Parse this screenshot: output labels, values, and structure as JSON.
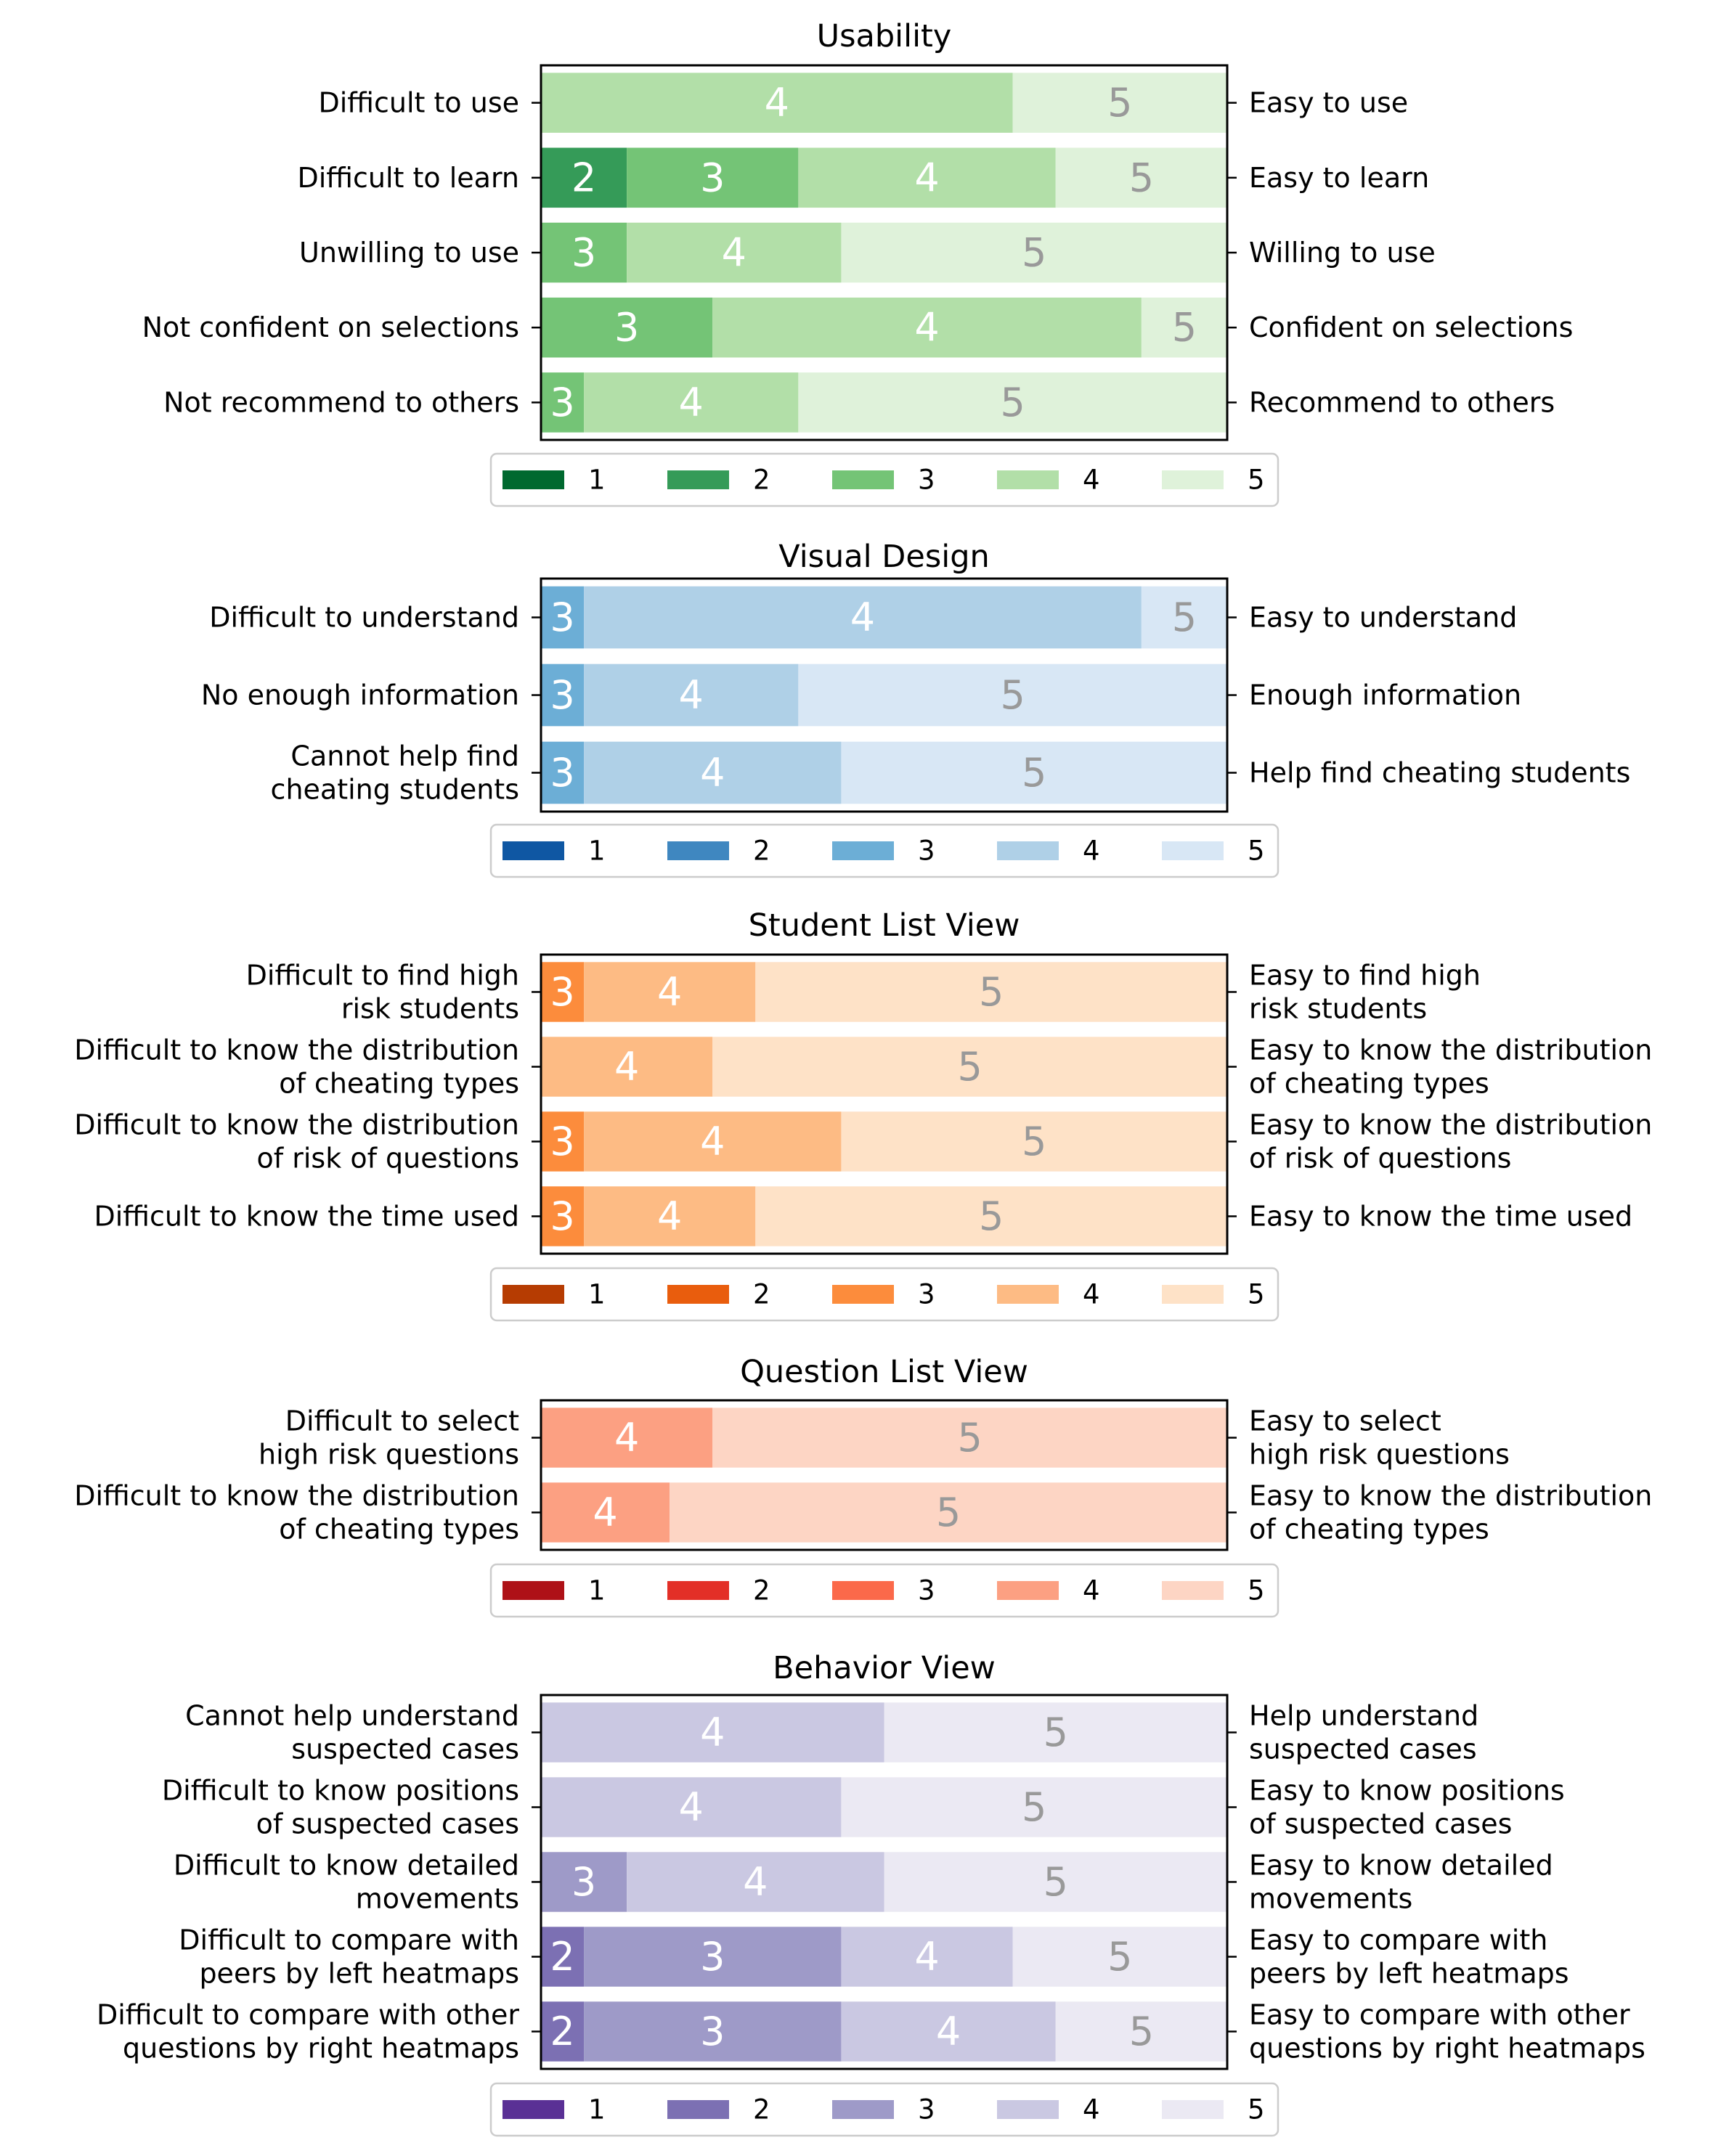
{
  "chart_data": [
    {
      "type": "bar",
      "orientation": "horizontal",
      "stacked": true,
      "title": "Usability",
      "xlim": [
        0,
        16
      ],
      "left_labels": [
        "Difficult to use",
        "Difficult to learn",
        "Unwilling to use",
        "Not confident on selections",
        "Not recommend to others"
      ],
      "right_labels": [
        "Easy to use",
        "Easy to learn",
        "Willing to use",
        "Confident on selections",
        "Recommend to others"
      ],
      "series": [
        {
          "name": "1",
          "values": [
            0,
            0,
            0,
            0,
            0
          ]
        },
        {
          "name": "2",
          "values": [
            0,
            2,
            0,
            0,
            0
          ]
        },
        {
          "name": "3",
          "values": [
            0,
            4,
            2,
            4,
            1
          ]
        },
        {
          "name": "4",
          "values": [
            11,
            6,
            5,
            10,
            5
          ]
        },
        {
          "name": "5",
          "values": [
            5,
            4,
            9,
            2,
            10
          ]
        }
      ],
      "colors": [
        "#00692f",
        "#359b58",
        "#74c476",
        "#b2dfa8",
        "#dff2da"
      ],
      "legend": {
        "position": "bottom",
        "entries": [
          "1",
          "2",
          "3",
          "4",
          "5"
        ]
      }
    },
    {
      "type": "bar",
      "orientation": "horizontal",
      "stacked": true,
      "title": "Visual Design",
      "xlim": [
        0,
        16
      ],
      "left_labels": [
        "Difficult to understand",
        "No enough information",
        "Cannot help find\ncheating students"
      ],
      "right_labels": [
        "Easy to understand",
        "Enough information",
        "Help find cheating students"
      ],
      "series": [
        {
          "name": "1",
          "values": [
            0,
            0,
            0
          ]
        },
        {
          "name": "2",
          "values": [
            0,
            0,
            0
          ]
        },
        {
          "name": "3",
          "values": [
            1,
            1,
            1
          ]
        },
        {
          "name": "4",
          "values": [
            13,
            5,
            6
          ]
        },
        {
          "name": "5",
          "values": [
            2,
            10,
            9
          ]
        }
      ],
      "colors": [
        "#0f57a3",
        "#3f87c0",
        "#6caed6",
        "#afd0e7",
        "#d8e7f5"
      ],
      "legend": {
        "position": "bottom",
        "entries": [
          "1",
          "2",
          "3",
          "4",
          "5"
        ]
      }
    },
    {
      "type": "bar",
      "orientation": "horizontal",
      "stacked": true,
      "title": "Student List View",
      "xlim": [
        0,
        16
      ],
      "left_labels": [
        "Difficult to find high\nrisk students",
        "Difficult to know the distribution\nof cheating types",
        "Difficult to know the distribution\nof risk of questions",
        "Difficult to know the time used"
      ],
      "right_labels": [
        "Easy to find high\nrisk students",
        "Easy to know the distribution\nof cheating types",
        "Easy to know the distribution\nof risk of questions",
        "Easy to know the time used"
      ],
      "series": [
        {
          "name": "1",
          "values": [
            0,
            0,
            0,
            0
          ]
        },
        {
          "name": "2",
          "values": [
            0,
            0,
            0,
            0
          ]
        },
        {
          "name": "3",
          "values": [
            1,
            0,
            1,
            1
          ]
        },
        {
          "name": "4",
          "values": [
            4,
            4,
            6,
            4
          ]
        },
        {
          "name": "5",
          "values": [
            11,
            12,
            9,
            11
          ]
        }
      ],
      "colors": [
        "#b63c02",
        "#e95d0d",
        "#fc8c3c",
        "#fdbb84",
        "#fee2c7"
      ],
      "legend": {
        "position": "bottom",
        "entries": [
          "1",
          "2",
          "3",
          "4",
          "5"
        ]
      }
    },
    {
      "type": "bar",
      "orientation": "horizontal",
      "stacked": true,
      "title": "Question List View",
      "xlim": [
        0,
        16
      ],
      "left_labels": [
        "Difficult to select\nhigh risk questions",
        "Difficult to know the distribution\nof cheating types"
      ],
      "right_labels": [
        "Easy to select\nhigh risk questions",
        "Easy to know the distribution\nof cheating types"
      ],
      "series": [
        {
          "name": "1",
          "values": [
            0,
            0
          ]
        },
        {
          "name": "2",
          "values": [
            0,
            0
          ]
        },
        {
          "name": "3",
          "values": [
            0,
            0
          ]
        },
        {
          "name": "4",
          "values": [
            4,
            3
          ]
        },
        {
          "name": "5",
          "values": [
            12,
            13
          ]
        }
      ],
      "colors": [
        "#ae1117",
        "#e32f27",
        "#fb694a",
        "#fca082",
        "#fdd5c4"
      ],
      "legend": {
        "position": "bottom",
        "entries": [
          "1",
          "2",
          "3",
          "4",
          "5"
        ]
      }
    },
    {
      "type": "bar",
      "orientation": "horizontal",
      "stacked": true,
      "title": "Behavior View",
      "xlim": [
        0,
        16
      ],
      "left_labels": [
        "Cannot help understand\nsuspected cases",
        "Difficult to know positions\nof suspected cases",
        "Difficult to know detailed\nmovements",
        "Difficult to compare with\npeers by left heatmaps",
        "Difficult to compare with other\nquestions by right heatmaps"
      ],
      "right_labels": [
        "Help understand\nsuspected cases",
        "Easy to know positions\nof suspected cases",
        "Easy to know detailed\nmovements",
        "Easy to compare with\npeers by left heatmaps",
        "Easy to compare with other\nquestions by right heatmaps"
      ],
      "series": [
        {
          "name": "1",
          "values": [
            0,
            0,
            0,
            0,
            0
          ]
        },
        {
          "name": "2",
          "values": [
            0,
            0,
            0,
            1,
            1
          ]
        },
        {
          "name": "3",
          "values": [
            0,
            0,
            2,
            6,
            6
          ]
        },
        {
          "name": "4",
          "values": [
            8,
            7,
            6,
            4,
            5
          ]
        },
        {
          "name": "5",
          "values": [
            8,
            9,
            8,
            5,
            4
          ]
        }
      ],
      "colors": [
        "#5a3095",
        "#7c70b3",
        "#9e9ac8",
        "#cac8e2",
        "#ebe9f3"
      ],
      "legend": {
        "position": "bottom",
        "entries": [
          "1",
          "2",
          "3",
          "4",
          "5"
        ]
      }
    }
  ]
}
